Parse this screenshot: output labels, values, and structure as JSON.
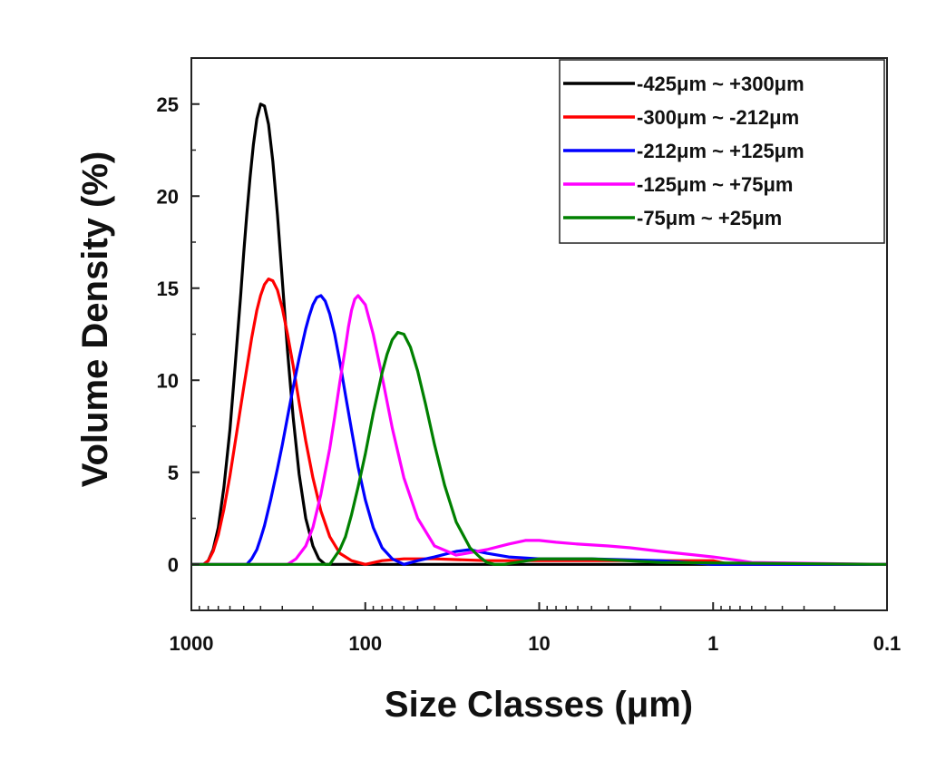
{
  "chart_data": {
    "type": "line",
    "title": "",
    "xlabel": "Size Classes (μm)",
    "ylabel": "Volume Density (%)",
    "x_scale": "log",
    "x_reversed": true,
    "xlim": [
      1000,
      0.1
    ],
    "ylim": [
      -2.5,
      27.5
    ],
    "x_ticks": [
      1000,
      100,
      10,
      1,
      0.1
    ],
    "x_tick_labels": [
      "1000",
      "100",
      "10",
      "1",
      "0.1"
    ],
    "y_ticks": [
      0,
      5,
      10,
      15,
      20,
      25
    ],
    "y_tick_labels": [
      "0",
      "5",
      "10",
      "15",
      "20",
      "25"
    ],
    "grid": false,
    "legend_position": "top-right",
    "series": [
      {
        "name": "-425μm ~ +300μm",
        "color": "#000000",
        "x": [
          1000,
          850,
          800,
          750,
          700,
          650,
          600,
          560,
          520,
          500,
          480,
          460,
          440,
          420,
          400,
          380,
          360,
          340,
          320,
          300,
          280,
          260,
          240,
          220,
          200,
          185,
          170,
          100,
          10,
          1,
          0.1
        ],
        "y": [
          0,
          0,
          0.2,
          0.8,
          2.0,
          4.2,
          7.3,
          10.8,
          14.7,
          16.9,
          19.0,
          21.0,
          22.8,
          24.2,
          25.0,
          24.9,
          23.9,
          21.9,
          19.0,
          15.4,
          11.6,
          8.0,
          4.9,
          2.5,
          1.0,
          0.3,
          0.0,
          0.0,
          0.0,
          0.0,
          0.0
        ]
      },
      {
        "name": "-300μm ~ -212μm",
        "color": "#ff0000",
        "x": [
          1000,
          850,
          800,
          750,
          700,
          650,
          600,
          550,
          500,
          450,
          420,
          400,
          380,
          360,
          340,
          320,
          300,
          280,
          260,
          240,
          220,
          200,
          180,
          160,
          140,
          120,
          100,
          80,
          60,
          40,
          20,
          10,
          5,
          2,
          1,
          0.8,
          0.1
        ],
        "y": [
          0,
          0,
          0.2,
          0.7,
          1.6,
          3.0,
          4.8,
          7.1,
          9.6,
          12.3,
          13.8,
          14.6,
          15.2,
          15.5,
          15.4,
          14.9,
          13.9,
          12.5,
          10.8,
          8.8,
          6.7,
          4.7,
          2.9,
          1.5,
          0.6,
          0.2,
          0.0,
          0.2,
          0.3,
          0.3,
          0.2,
          0.2,
          0.2,
          0.2,
          0.2,
          0.0,
          0.0
        ]
      },
      {
        "name": "-212μm ~ +125μm",
        "color": "#0000ff",
        "x": [
          1000,
          480,
          450,
          420,
          400,
          380,
          350,
          320,
          300,
          280,
          260,
          240,
          220,
          210,
          200,
          190,
          180,
          170,
          160,
          150,
          140,
          130,
          120,
          110,
          100,
          90,
          80,
          70,
          60,
          50,
          40,
          30,
          25,
          20,
          15,
          10,
          5,
          2,
          1,
          0.1
        ],
        "y": [
          0,
          0,
          0.3,
          0.8,
          1.4,
          2.1,
          3.5,
          5.2,
          6.5,
          8.0,
          9.6,
          11.2,
          12.8,
          13.5,
          14.1,
          14.5,
          14.6,
          14.3,
          13.6,
          12.5,
          11.0,
          9.2,
          7.3,
          5.3,
          3.5,
          2.0,
          0.9,
          0.3,
          0.0,
          0.2,
          0.4,
          0.7,
          0.8,
          0.6,
          0.4,
          0.3,
          0.3,
          0.2,
          0.0,
          0.0
        ]
      },
      {
        "name": "-125μm ~ +75μm",
        "color": "#ff00ff",
        "x": [
          1000,
          280,
          250,
          220,
          200,
          180,
          160,
          150,
          140,
          130,
          125,
          120,
          115,
          110,
          100,
          90,
          80,
          70,
          60,
          50,
          40,
          30,
          20,
          15,
          12,
          10,
          8,
          6,
          4,
          3,
          2,
          1,
          0.7,
          0.6,
          0.1
        ],
        "y": [
          0,
          0,
          0.3,
          1.0,
          2.0,
          3.8,
          6.3,
          8.0,
          9.9,
          11.8,
          12.9,
          13.8,
          14.4,
          14.6,
          14.1,
          12.5,
          10.2,
          7.4,
          4.7,
          2.5,
          1.0,
          0.5,
          0.8,
          1.1,
          1.3,
          1.3,
          1.2,
          1.1,
          1.0,
          0.9,
          0.7,
          0.4,
          0.2,
          0.1,
          0.0
        ]
      },
      {
        "name": "-75μm ~ +25μm",
        "color": "#008000",
        "x": [
          1000,
          160,
          140,
          130,
          120,
          110,
          100,
          90,
          80,
          75,
          70,
          65,
          60,
          55,
          50,
          45,
          40,
          35,
          30,
          25,
          22,
          20,
          18,
          16,
          10,
          5,
          2,
          0.1
        ],
        "y": [
          0,
          0,
          0.8,
          1.5,
          2.7,
          4.2,
          6.0,
          8.2,
          10.4,
          11.4,
          12.2,
          12.6,
          12.5,
          11.8,
          10.5,
          8.7,
          6.5,
          4.3,
          2.3,
          0.9,
          0.4,
          0.1,
          0.0,
          0.0,
          0.3,
          0.3,
          0.1,
          0.0
        ]
      }
    ]
  }
}
